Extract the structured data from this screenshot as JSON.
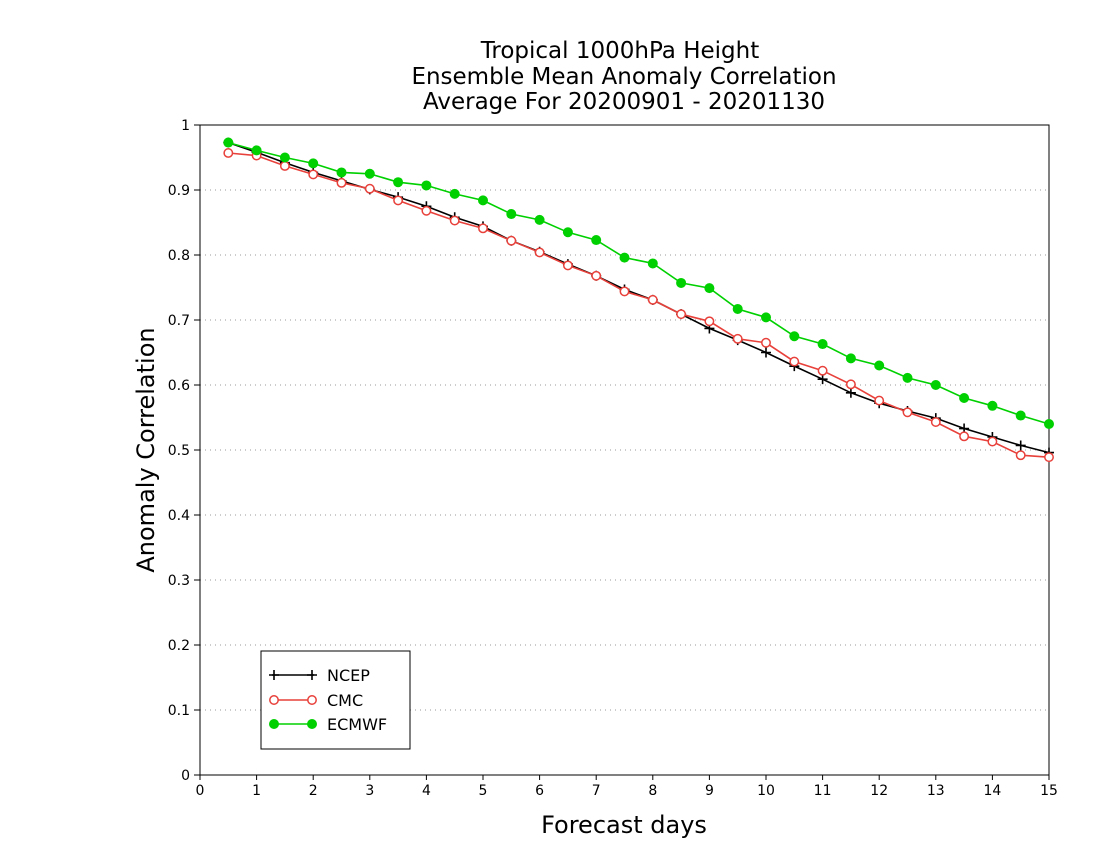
{
  "chart_data": {
    "type": "line",
    "title": [
      "Tropical 1000hPa Height",
      "Ensemble Mean Anomaly Correlation",
      "Average For 20200901 - 20201130"
    ],
    "xlabel": "Forecast days",
    "ylabel": "Anomaly Correlation",
    "xlim": [
      0,
      15
    ],
    "ylim": [
      0,
      1
    ],
    "xticks": [
      "0",
      "1",
      "2",
      "3",
      "4",
      "5",
      "6",
      "7",
      "8",
      "9",
      "10",
      "11",
      "12",
      "13",
      "14",
      "15"
    ],
    "yticks": [
      "0",
      "0.1",
      "0.2",
      "0.3",
      "0.4",
      "0.5",
      "0.6",
      "0.7",
      "0.8",
      "0.9",
      "1"
    ],
    "grid": "horizontal dotted",
    "legend_position": "bottom-left",
    "x": [
      0.5,
      1,
      1.5,
      2,
      2.5,
      3,
      3.5,
      4,
      4.5,
      5,
      5.5,
      6,
      6.5,
      7,
      7.5,
      8,
      8.5,
      9,
      9.5,
      10,
      10.5,
      11,
      11.5,
      12,
      12.5,
      13,
      13.5,
      14,
      14.5,
      15
    ],
    "series": [
      {
        "name": "NCEP",
        "color": "#000000",
        "marker": "plus",
        "values": [
          0.973,
          0.958,
          0.942,
          0.927,
          0.914,
          0.901,
          0.889,
          0.875,
          0.858,
          0.844,
          0.822,
          0.805,
          0.786,
          0.768,
          0.747,
          0.731,
          0.709,
          0.687,
          0.669,
          0.65,
          0.629,
          0.609,
          0.588,
          0.572,
          0.56,
          0.549,
          0.533,
          0.52,
          0.507,
          0.496
        ]
      },
      {
        "name": "CMC",
        "color": "#e8403a",
        "marker": "open-circle",
        "values": [
          0.957,
          0.953,
          0.937,
          0.924,
          0.911,
          0.902,
          0.884,
          0.868,
          0.853,
          0.841,
          0.822,
          0.804,
          0.784,
          0.768,
          0.744,
          0.731,
          0.709,
          0.698,
          0.671,
          0.665,
          0.636,
          0.622,
          0.601,
          0.576,
          0.558,
          0.543,
          0.521,
          0.513,
          0.492,
          0.489
        ]
      },
      {
        "name": "ECMWF",
        "color": "#00d000",
        "marker": "filled-circle",
        "values": [
          0.973,
          0.961,
          0.95,
          0.941,
          0.927,
          0.925,
          0.912,
          0.907,
          0.894,
          0.884,
          0.863,
          0.854,
          0.835,
          0.823,
          0.796,
          0.787,
          0.757,
          0.749,
          0.717,
          0.704,
          0.675,
          0.663,
          0.641,
          0.63,
          0.611,
          0.6,
          0.58,
          0.568,
          0.553,
          0.54
        ]
      }
    ]
  }
}
